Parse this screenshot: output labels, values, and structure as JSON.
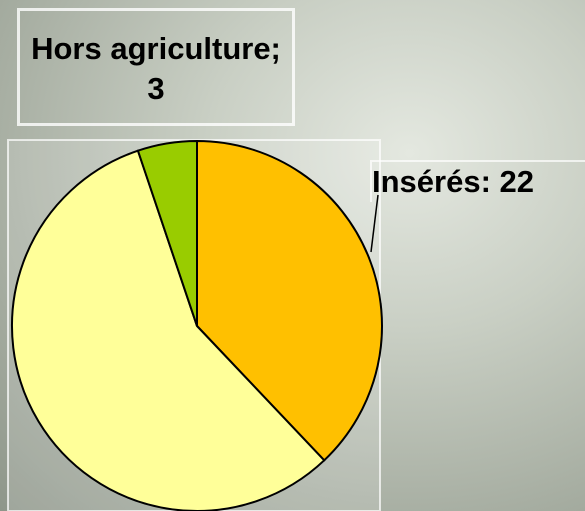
{
  "chart_data": {
    "type": "pie",
    "labels": [
      "Insérés: 22",
      null,
      "Hors agriculture; 3"
    ],
    "values": [
      22,
      33,
      3
    ],
    "colors": [
      "#ffc000",
      "#ffff99",
      "#99cc00"
    ]
  }
}
